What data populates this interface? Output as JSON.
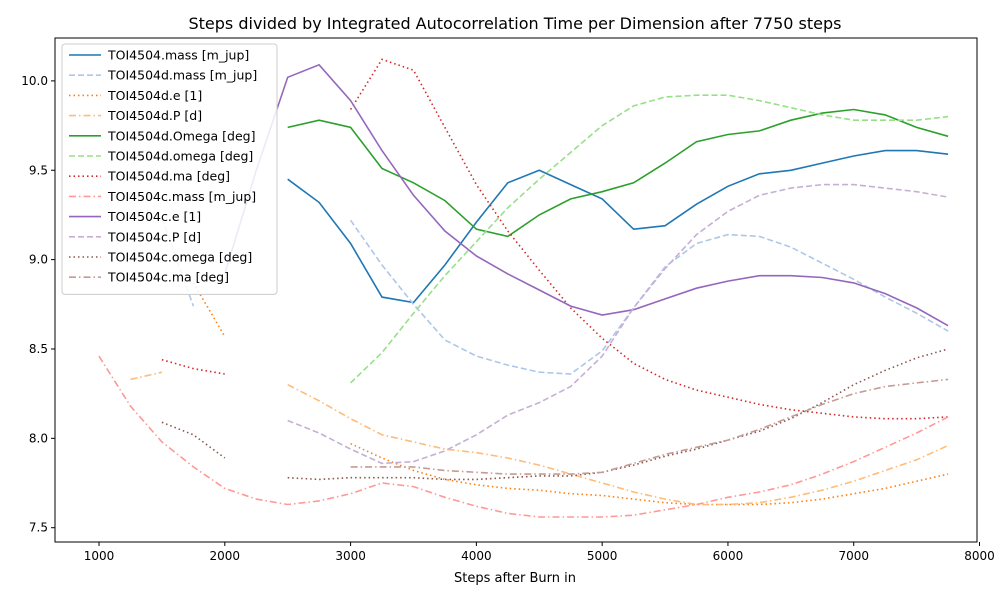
{
  "chart_data": {
    "type": "line",
    "title": "Steps divided by Integrated Autocorrelation Time per Dimension after 7750 steps",
    "xlabel": "Steps after Burn in",
    "ylabel": "",
    "xlim": [
      650,
      7980
    ],
    "ylim": [
      7.42,
      10.24
    ],
    "xticks": [
      1000,
      2000,
      3000,
      4000,
      5000,
      6000,
      7000,
      8000
    ],
    "yticks": [
      7.5,
      8.0,
      8.5,
      9.0,
      9.5,
      10.0
    ],
    "legend_position": "upper-left",
    "series": [
      {
        "name": "TOI4504.mass [m_jup]",
        "color": "#1f77b4",
        "dash": "solid",
        "x": [
          2500,
          2750,
          3000,
          3250,
          3500,
          3750,
          4000,
          4250,
          4500,
          4750,
          5000,
          5250,
          5500,
          5750,
          6000,
          6250,
          6500,
          6750,
          7000,
          7250,
          7500,
          7750
        ],
        "y": [
          9.45,
          9.32,
          9.09,
          8.79,
          8.76,
          8.97,
          9.21,
          9.43,
          9.5,
          9.42,
          9.34,
          9.17,
          9.19,
          9.31,
          9.41,
          9.48,
          9.5,
          9.54,
          9.58,
          9.61,
          9.61,
          9.59
        ]
      },
      {
        "name": "TOI4504d.mass [m_jup]",
        "color": "#aec7e8",
        "dash": "dashed",
        "x": [
          1500,
          1750,
          3000,
          3250,
          3500,
          3750,
          4000,
          4250,
          4500,
          4750,
          5000,
          5250,
          5500,
          5750,
          6000,
          6250,
          6500,
          6750,
          7000,
          7250,
          7500,
          7750
        ],
        "y": [
          9.23,
          8.74,
          9.22,
          8.97,
          8.75,
          8.55,
          8.46,
          8.41,
          8.37,
          8.36,
          8.49,
          8.73,
          8.96,
          9.09,
          9.14,
          9.13,
          9.07,
          8.98,
          8.89,
          8.79,
          8.7,
          8.6
        ]
      },
      {
        "name": "TOI4504d.e [1]",
        "color": "#ff7f0e",
        "dash": "dotted",
        "x": [
          1750,
          2000,
          3000,
          3250,
          3500,
          3750,
          4000,
          4250,
          4500,
          4750,
          5000,
          5250,
          5500,
          5750,
          6000,
          6250,
          6500,
          6750,
          7000,
          7250,
          7500,
          7750
        ],
        "y": [
          8.87,
          8.57,
          7.97,
          7.89,
          7.82,
          7.77,
          7.74,
          7.72,
          7.71,
          7.69,
          7.68,
          7.66,
          7.64,
          7.63,
          7.63,
          7.63,
          7.64,
          7.66,
          7.69,
          7.72,
          7.76,
          7.8
        ]
      },
      {
        "name": "TOI4504d.P [d]",
        "color": "#ffbb78",
        "dash": "dashdot",
        "x": [
          1250,
          1500,
          2500,
          2750,
          3000,
          3250,
          3500,
          3750,
          4000,
          4250,
          4500,
          4750,
          5000,
          5250,
          5500,
          5750,
          6000,
          6250,
          6500,
          6750,
          7000,
          7250,
          7500,
          7750
        ],
        "y": [
          8.33,
          8.37,
          8.3,
          8.21,
          8.11,
          8.02,
          7.98,
          7.94,
          7.92,
          7.89,
          7.85,
          7.8,
          7.75,
          7.7,
          7.66,
          7.63,
          7.63,
          7.64,
          7.67,
          7.71,
          7.76,
          7.82,
          7.88,
          7.96
        ]
      },
      {
        "name": "TOI4504d.Omega [deg]",
        "color": "#2ca02c",
        "dash": "solid",
        "x": [
          2500,
          2750,
          3000,
          3250,
          3500,
          3750,
          4000,
          4250,
          4500,
          4750,
          5000,
          5250,
          5500,
          5750,
          6000,
          6250,
          6500,
          6750,
          7000,
          7250,
          7500,
          7750
        ],
        "y": [
          9.74,
          9.78,
          9.74,
          9.51,
          9.43,
          9.33,
          9.17,
          9.13,
          9.25,
          9.34,
          9.38,
          9.43,
          9.54,
          9.66,
          9.7,
          9.72,
          9.78,
          9.82,
          9.84,
          9.81,
          9.74,
          9.69
        ]
      },
      {
        "name": "TOI4504d.omega [deg]",
        "color": "#98df8a",
        "dash": "dashed",
        "x": [
          3000,
          3250,
          3500,
          3750,
          4000,
          4250,
          4500,
          4750,
          5000,
          5250,
          5500,
          5750,
          6000,
          6250,
          6500,
          6750,
          7000,
          7250,
          7500,
          7750
        ],
        "y": [
          8.31,
          8.48,
          8.7,
          8.91,
          9.1,
          9.29,
          9.45,
          9.6,
          9.75,
          9.86,
          9.91,
          9.92,
          9.92,
          9.89,
          9.85,
          9.81,
          9.78,
          9.78,
          9.78,
          9.8
        ]
      },
      {
        "name": "TOI4504d.ma [deg]",
        "color": "#d62728",
        "dash": "dotted",
        "x": [
          1500,
          1750,
          2000,
          3000,
          3250,
          3500,
          3750,
          4000,
          4250,
          4500,
          4750,
          5000,
          5250,
          5500,
          5750,
          6000,
          6250,
          6500,
          6750,
          7000,
          7250,
          7500,
          7750
        ],
        "y": [
          8.44,
          8.39,
          8.36,
          9.84,
          10.12,
          10.06,
          9.74,
          9.42,
          9.16,
          8.94,
          8.73,
          8.56,
          8.42,
          8.33,
          8.27,
          8.23,
          8.19,
          8.16,
          8.14,
          8.12,
          8.11,
          8.11,
          8.12
        ]
      },
      {
        "name": "TOI4504c.mass [m_jup]",
        "color": "#ff9896",
        "dash": "dashdot",
        "x": [
          1000,
          1250,
          1500,
          1750,
          2000,
          2250,
          2500,
          2750,
          3000,
          3250,
          3500,
          3750,
          4000,
          4250,
          4500,
          4750,
          5000,
          5250,
          5500,
          5750,
          6000,
          6250,
          6500,
          6750,
          7000,
          7250,
          7500,
          7750
        ],
        "y": [
          8.46,
          8.18,
          7.98,
          7.84,
          7.72,
          7.66,
          7.63,
          7.65,
          7.69,
          7.75,
          7.73,
          7.67,
          7.62,
          7.58,
          7.56,
          7.56,
          7.56,
          7.57,
          7.6,
          7.63,
          7.67,
          7.7,
          7.74,
          7.8,
          7.87,
          7.95,
          8.03,
          8.12
        ]
      },
      {
        "name": "TOI4504c.e [1]",
        "color": "#9467bd",
        "dash": "solid",
        "x": [
          2000,
          2250,
          2500,
          2750,
          3000,
          3250,
          3500,
          3750,
          4000,
          4250,
          4500,
          4750,
          5000,
          5250,
          5500,
          5750,
          6000,
          6250,
          6500,
          6750,
          7000,
          7250,
          7500,
          7750
        ],
        "y": [
          8.92,
          9.5,
          10.02,
          10.09,
          9.89,
          9.61,
          9.36,
          9.16,
          9.02,
          8.92,
          8.83,
          8.74,
          8.69,
          8.72,
          8.78,
          8.84,
          8.88,
          8.91,
          8.91,
          8.9,
          8.87,
          8.81,
          8.73,
          8.63
        ]
      },
      {
        "name": "TOI4504c.P [d]",
        "color": "#c5b0d5",
        "dash": "dashed",
        "x": [
          2500,
          2750,
          3000,
          3250,
          3500,
          3750,
          4000,
          4250,
          4500,
          4750,
          5000,
          5250,
          5500,
          5750,
          6000,
          6250,
          6500,
          6750,
          7000,
          7250,
          7500,
          7750
        ],
        "y": [
          8.1,
          8.03,
          7.94,
          7.86,
          7.87,
          7.93,
          8.02,
          8.13,
          8.2,
          8.29,
          8.46,
          8.73,
          8.95,
          9.14,
          9.27,
          9.36,
          9.4,
          9.42,
          9.42,
          9.4,
          9.38,
          9.35
        ]
      },
      {
        "name": "TOI4504c.omega [deg]",
        "color": "#8c564b",
        "dash": "dotted",
        "x": [
          1500,
          1750,
          2000,
          2500,
          2750,
          3000,
          3250,
          3500,
          3750,
          4000,
          4250,
          4500,
          4750,
          5000,
          5250,
          5500,
          5750,
          6000,
          6250,
          6500,
          6750,
          7000,
          7250,
          7500,
          7750
        ],
        "y": [
          8.09,
          8.02,
          7.89,
          7.78,
          7.77,
          7.78,
          7.78,
          7.78,
          7.77,
          7.77,
          7.78,
          7.79,
          7.79,
          7.81,
          7.85,
          7.9,
          7.94,
          7.99,
          8.04,
          8.11,
          8.2,
          8.3,
          8.38,
          8.45,
          8.5
        ]
      },
      {
        "name": "TOI4504c.ma [deg]",
        "color": "#c49c94",
        "dash": "dashdot",
        "x": [
          3000,
          3250,
          3500,
          3750,
          4000,
          4250,
          4500,
          4750,
          5000,
          5250,
          5500,
          5750,
          6000,
          6250,
          6500,
          6750,
          7000,
          7250,
          7500,
          7750
        ],
        "y": [
          7.84,
          7.84,
          7.84,
          7.82,
          7.81,
          7.8,
          7.8,
          7.8,
          7.81,
          7.86,
          7.91,
          7.95,
          7.99,
          8.05,
          8.12,
          8.19,
          8.25,
          8.29,
          8.31,
          8.33
        ]
      }
    ]
  }
}
